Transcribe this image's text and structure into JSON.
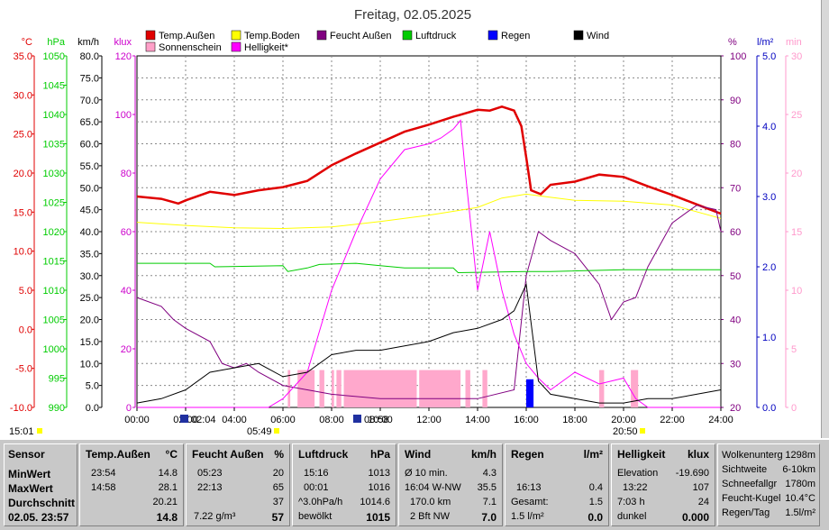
{
  "title": "Freitag, 02.05.2025",
  "chart_data": {
    "type": "line",
    "title": "Freitag, 02.05.2025",
    "x_ticks": [
      "00:00",
      "02:00",
      "04:00",
      "06:00",
      "08:00",
      "10:00",
      "12:00",
      "14:00",
      "16:00",
      "18:00",
      "20:00",
      "22:00",
      "24:00"
    ],
    "axes": {
      "celsius": {
        "unit": "°C",
        "color": "#e00000",
        "ticks": [
          "35.0",
          "30.0",
          "25.0",
          "20.0",
          "15.0",
          "10.0",
          "5.0",
          "0.0",
          "-5.0",
          "-10.0"
        ],
        "ylim": [
          -10,
          35
        ]
      },
      "hpa": {
        "unit": "hPa",
        "color": "#00cc00",
        "ticks": [
          "1050",
          "1045",
          "1040",
          "1035",
          "1030",
          "1025",
          "1020",
          "1015",
          "1010",
          "1005",
          "1000",
          "995",
          "990"
        ],
        "ylim": [
          990,
          1050
        ]
      },
      "kmh": {
        "unit": "km/h",
        "color": "#000000",
        "ticks": [
          "80.0",
          "75.0",
          "70.0",
          "65.0",
          "60.0",
          "55.0",
          "50.0",
          "45.0",
          "40.0",
          "35.0",
          "30.0",
          "25.0",
          "20.0",
          "15.0",
          "10.0",
          "5.0",
          "0.0"
        ],
        "ylim": [
          0,
          80
        ]
      },
      "klux": {
        "unit": "klux",
        "color": "#cc00cc",
        "ticks": [
          "120",
          "100",
          "80",
          "60",
          "40",
          "20",
          "0"
        ],
        "ylim": [
          0,
          120
        ]
      },
      "pct": {
        "unit": "%",
        "color": "#800080",
        "ticks": [
          "100",
          "90",
          "80",
          "70",
          "60",
          "50",
          "40",
          "30",
          "20"
        ],
        "ylim": [
          20,
          100
        ]
      },
      "lm2": {
        "unit": "l/m²",
        "color": "#0000c0",
        "ticks": [
          "5.0",
          "4.0",
          "3.0",
          "2.0",
          "1.0",
          "0.0"
        ],
        "ylim": [
          0,
          5
        ]
      },
      "min": {
        "unit": "min",
        "color": "#ff99cc",
        "ticks": [
          "30",
          "25",
          "20",
          "15",
          "10",
          "5",
          "0"
        ],
        "ylim": [
          0,
          30
        ]
      }
    },
    "legend": [
      {
        "name": "Temp.Außen",
        "color": "#e00000"
      },
      {
        "name": "Temp.Boden",
        "color": "#ffff00"
      },
      {
        "name": "Feucht Außen",
        "color": "#800080"
      },
      {
        "name": "Luftdruck",
        "color": "#00cc00"
      },
      {
        "name": "Regen",
        "color": "#0000ff"
      },
      {
        "name": "Wind",
        "color": "#000000"
      },
      {
        "name": "Sonnenschein",
        "color": "#ffa0c8"
      },
      {
        "name": "Helligkeit*",
        "color": "#ff00ff"
      }
    ],
    "series": [
      {
        "name": "Temp.Außen",
        "axis": "celsius",
        "x": [
          0,
          1,
          1.7,
          2,
          3,
          4,
          5,
          6,
          7,
          8,
          9,
          10,
          11,
          12,
          13,
          14,
          14.5,
          15,
          15.5,
          15.8,
          16,
          16.2,
          16.6,
          17,
          18,
          19,
          20,
          21,
          22,
          23,
          24
        ],
        "values": [
          17.0,
          16.7,
          16.1,
          16.5,
          17.6,
          17.2,
          17.8,
          18.2,
          19.0,
          21.0,
          22.5,
          23.9,
          25.3,
          26.2,
          27.2,
          28.1,
          28.0,
          28.5,
          28.0,
          26.0,
          22.0,
          17.8,
          17.3,
          18.5,
          18.9,
          19.8,
          19.5,
          18.3,
          17.2,
          16.0,
          14.8
        ]
      },
      {
        "name": "Temp.Boden",
        "axis": "celsius",
        "x": [
          0,
          2,
          4,
          6,
          8,
          10,
          12,
          14,
          15,
          16,
          17,
          18,
          20,
          22,
          24
        ],
        "values": [
          13.7,
          13.3,
          13.0,
          12.9,
          13.1,
          13.8,
          14.6,
          15.6,
          16.8,
          17.3,
          16.9,
          16.5,
          16.4,
          15.9,
          14.2
        ]
      },
      {
        "name": "Feucht Außen",
        "axis": "pct",
        "x": [
          0,
          1,
          1.5,
          2,
          3,
          3.5,
          4,
          4.5,
          5,
          6,
          7,
          8,
          10,
          12,
          14,
          15.5,
          16,
          16.5,
          17,
          18,
          19,
          19.5,
          20,
          20.5,
          21,
          22,
          23,
          23.8,
          24
        ],
        "values": [
          45,
          43,
          40,
          38,
          35,
          30,
          29,
          30,
          28,
          25,
          24,
          23,
          22,
          22,
          22,
          24,
          50,
          60,
          58,
          55,
          48,
          40,
          44,
          45,
          52,
          62,
          66,
          65,
          60
        ]
      },
      {
        "name": "Luftdruck",
        "axis": "hpa",
        "x": [
          0,
          3,
          3.2,
          6,
          6.2,
          7,
          7.5,
          9,
          10,
          11,
          13,
          13.2,
          16,
          17,
          20,
          24
        ],
        "values": [
          1014.6,
          1014.6,
          1014.0,
          1014.2,
          1013.2,
          1013.8,
          1014.4,
          1014.6,
          1014.2,
          1013.8,
          1013.8,
          1013.0,
          1013.2,
          1013.2,
          1013.5,
          1013.5
        ]
      },
      {
        "name": "Helligkeit*",
        "axis": "klux",
        "x": [
          0,
          5.4,
          6,
          7,
          8,
          9,
          10,
          11,
          12,
          12.5,
          13,
          13.3,
          13.5,
          14,
          14.5,
          15,
          15.5,
          16,
          16.5,
          17,
          18,
          19,
          20,
          20.5,
          21,
          24
        ],
        "values": [
          0,
          0,
          3,
          12,
          40,
          60,
          78,
          88,
          90,
          92,
          95,
          98,
          80,
          40,
          60,
          40,
          25,
          15,
          10,
          6,
          12,
          8,
          10,
          3,
          0,
          0
        ]
      },
      {
        "name": "Wind",
        "axis": "kmh",
        "x": [
          0,
          1,
          2,
          3,
          4,
          5,
          6,
          7,
          8,
          9,
          10,
          11,
          12,
          13,
          14,
          15,
          15.5,
          16,
          16.5,
          17,
          18,
          19,
          20,
          21,
          22,
          23,
          24
        ],
        "values": [
          1,
          2,
          4,
          8,
          9,
          10,
          7,
          8,
          12,
          13,
          13,
          14,
          15,
          17,
          18,
          20,
          22,
          28,
          6,
          3,
          2,
          1,
          1,
          2,
          2,
          3,
          4
        ]
      },
      {
        "name": "Regen",
        "axis": "lm2",
        "x": [
          16,
          16.3
        ],
        "values": [
          0.4,
          0.4
        ]
      }
    ],
    "sunshine_intervals": [
      [
        6.2,
        6.3
      ],
      [
        6.6,
        7.3
      ],
      [
        7.5,
        7.7
      ],
      [
        8.0,
        8.1
      ],
      [
        8.2,
        8.4
      ],
      [
        8.5,
        11.5
      ],
      [
        11.6,
        13.3
      ],
      [
        13.5,
        13.7
      ],
      [
        14.2,
        14.4
      ],
      [
        19.0,
        19.2
      ],
      [
        20.3,
        20.6
      ]
    ],
    "grid": true
  },
  "left_bottom": {
    "time": "15:01"
  },
  "markers": [
    {
      "label": "02:04"
    },
    {
      "label": "05:49"
    },
    {
      "label": "08:58"
    },
    {
      "label": "20:50"
    }
  ],
  "table": {
    "sensor": {
      "header": "Sensor",
      "rows": [
        "MinWert",
        "MaxWert",
        "Durchschnitt",
        "02.05. 23:57"
      ]
    },
    "temp": {
      "header": "Temp.Außen",
      "unit": "°C",
      "rows": [
        [
          "23:54",
          "14.8"
        ],
        [
          "14:58",
          "28.1"
        ],
        [
          "",
          "20.21"
        ],
        [
          "",
          "14.8"
        ]
      ]
    },
    "feucht": {
      "header": "Feucht Außen",
      "unit": "%",
      "rows": [
        [
          "05:23",
          "20"
        ],
        [
          "22:13",
          "65"
        ],
        [
          "",
          "37"
        ],
        [
          "7.22 g/m³",
          "57"
        ]
      ]
    },
    "luftdruck": {
      "header": "Luftdruck",
      "unit": "hPa",
      "rows": [
        [
          "15:16",
          "1013"
        ],
        [
          "00:01",
          "1016"
        ],
        [
          "^3.0hPa/h",
          "1014.6"
        ],
        [
          "bewölkt",
          "1015"
        ]
      ]
    },
    "wind": {
      "header": "Wind",
      "unit": "km/h",
      "rows": [
        [
          "Ø 10 min.",
          "4.3"
        ],
        [
          "16:04   W-NW",
          "35.5"
        ],
        [
          "170.0 km",
          "7.1"
        ],
        [
          "2 Bft NW",
          "7.0"
        ]
      ]
    },
    "regen": {
      "header": "Regen",
      "unit": "l/m²",
      "rows": [
        [
          "",
          ""
        ],
        [
          "16:13",
          "0.4"
        ],
        [
          "Gesamt:",
          "1.5"
        ],
        [
          "1.5 l/m²",
          "0.0"
        ]
      ]
    },
    "hell": {
      "header": "Helligkeit",
      "unit": "klux",
      "rows": [
        [
          "Elevation",
          "-19.690"
        ],
        [
          "13:22",
          "107"
        ],
        [
          "7:03 h",
          "24"
        ],
        [
          "dunkel",
          "0.000"
        ]
      ]
    },
    "extra": {
      "rows": [
        [
          "Wolkenunterg",
          "1298m"
        ],
        [
          "Sichtweite",
          "6-10km"
        ],
        [
          "Schneefallgr",
          "1780m"
        ],
        [
          "Feucht-Kugel",
          "10.4°C"
        ],
        [
          "Regen/Tag",
          "1.5l/m²"
        ]
      ]
    }
  }
}
